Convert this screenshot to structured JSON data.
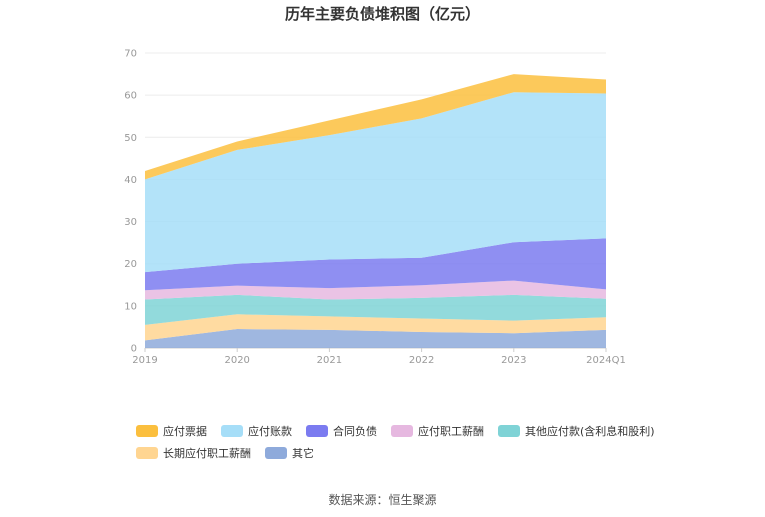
{
  "chart_data": {
    "type": "area",
    "stacked": true,
    "title": "历年主要负债堆积图（亿元）",
    "categories": [
      "2019",
      "2020",
      "2021",
      "2022",
      "2023",
      "2024Q1"
    ],
    "y_ticks": [
      "0",
      "10",
      "20",
      "30",
      "40",
      "50",
      "60",
      "70"
    ],
    "ylim": [
      0,
      70
    ],
    "grid": true,
    "legend_position": "bottom",
    "series": [
      {
        "name": "其它",
        "color": "#8eaadb",
        "values": [
          1.8,
          4.5,
          4.3,
          3.8,
          3.5,
          4.3
        ]
      },
      {
        "name": "长期应付职工薪酬",
        "color": "#ffd591",
        "values": [
          3.7,
          3.5,
          3.2,
          3.2,
          3.0,
          3.0
        ]
      },
      {
        "name": "其他应付款(含利息和股利)",
        "color": "#7fd3d6",
        "values": [
          6.0,
          4.6,
          4.0,
          4.9,
          6.1,
          4.4
        ]
      },
      {
        "name": "应付职工薪酬",
        "color": "#e6b8e0",
        "values": [
          2.2,
          2.2,
          2.7,
          3.0,
          3.4,
          2.2
        ]
      },
      {
        "name": "合同负债",
        "color": "#7b7bf0",
        "values": [
          4.3,
          5.2,
          6.8,
          6.5,
          9.1,
          12.1
        ]
      },
      {
        "name": "应付账款",
        "color": "#a6def8",
        "values": [
          22.0,
          27.0,
          29.5,
          33.1,
          35.6,
          34.4
        ]
      },
      {
        "name": "应付票据",
        "color": "#fbbf3e",
        "values": [
          2.0,
          2.0,
          3.5,
          4.5,
          4.3,
          3.3
        ]
      }
    ],
    "legend_order": [
      "应付票据",
      "应付账款",
      "合同负债",
      "应付职工薪酬",
      "其他应付款(含利息和股利)",
      "长期应付职工薪酬",
      "其它"
    ]
  },
  "source_text": "数据来源：恒生聚源"
}
